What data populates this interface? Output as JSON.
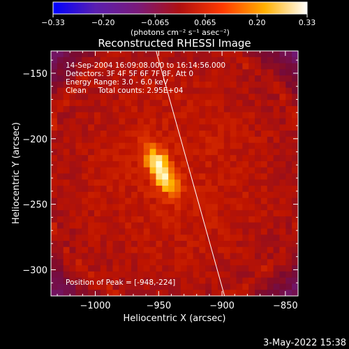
{
  "chart_data": {
    "type": "heatmap",
    "title": "Reconstructed RHESSI Image",
    "xlabel": "Heliocentric X (arcsec)",
    "ylabel": "Heliocentric Y (arcsec)",
    "xlim": [
      -1035,
      -840
    ],
    "ylim": [
      -320,
      -133
    ],
    "xticks": [
      -1000,
      -950,
      -900,
      -850
    ],
    "yticks": [
      -300,
      -250,
      -200,
      -150
    ],
    "xtick_labels": [
      "−1000",
      "−950",
      "−900",
      "−850"
    ],
    "ytick_labels": [
      "−300",
      "−250",
      "−200",
      "−150"
    ],
    "grid": false,
    "colorbar": {
      "range": [
        -0.33,
        0.33
      ],
      "ticks": [
        -0.33,
        -0.2,
        -0.065,
        0.065,
        0.2,
        0.33
      ],
      "tick_labels": [
        "−0.33",
        "−0.20",
        "−0.065",
        "0.065",
        "0.20",
        "0.33"
      ],
      "units_label": "(photons cm⁻² s⁻¹ asec⁻²)",
      "colors": [
        "#0000ff",
        "#5a1fb0",
        "#7a1a7a",
        "#b01010",
        "#ff3a00",
        "#ffb000",
        "#ffffff"
      ]
    },
    "annotations": [
      "14-Sep-2004 16:09:08.000 to 16:14:56.000",
      "Detectors: 3F 4F 5F 6F 7F 8F, Att 0",
      "Energy Range: 3.0 - 6.0 keV",
      "Clean     Total counts: 2.95E+04"
    ],
    "peak_label": "Position of Peak = [-948,-224]",
    "peak": [
      -948,
      -224
    ],
    "limb_line": [
      [
        -952,
        -133
      ],
      [
        -898,
        -320
      ]
    ],
    "background_color": "#6a1f9a",
    "disk_color": "#c71a00",
    "hot_color": "#ffff40"
  },
  "footer": {
    "date": "3-May-2022 15:38"
  }
}
